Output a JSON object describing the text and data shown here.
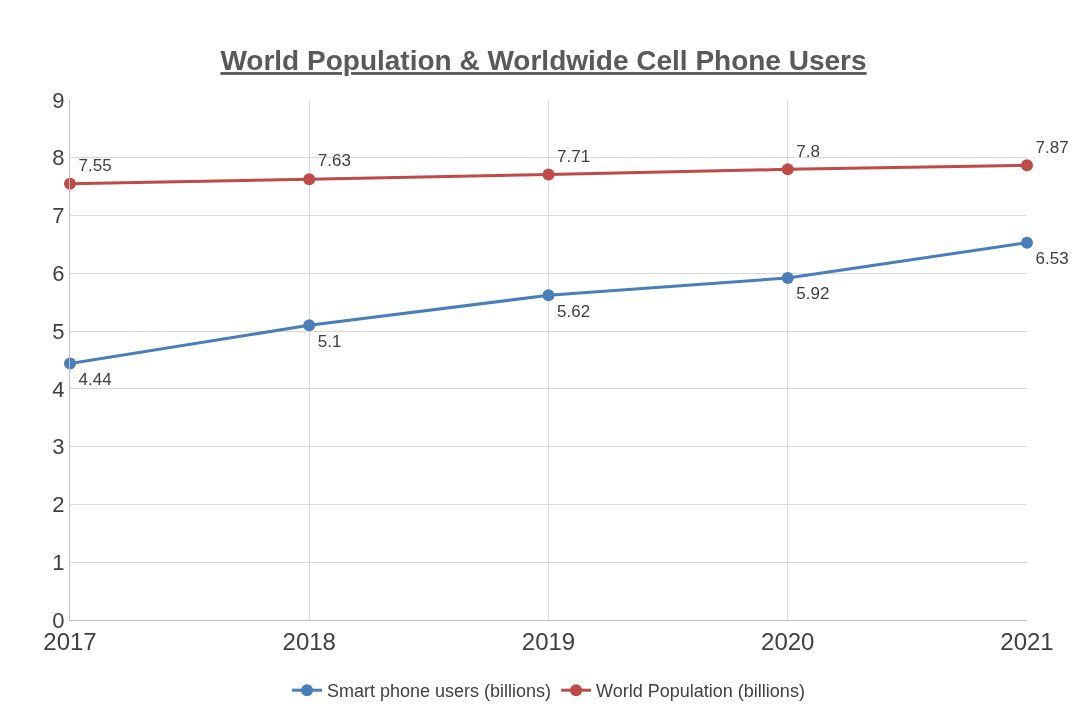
{
  "chart_data": {
    "type": "line",
    "title": "World Population & Worldwide Cell Phone Users",
    "x": [
      2017,
      2018,
      2019,
      2020,
      2021
    ],
    "series": [
      {
        "name": "Smart phone users (billions)",
        "color": "#4a7ebb",
        "values": [
          4.44,
          5.1,
          5.62,
          5.92,
          6.53
        ]
      },
      {
        "name": "World Population (billions)",
        "color": "#be4b48",
        "values": [
          7.55,
          7.63,
          7.71,
          7.8,
          7.87
        ]
      }
    ],
    "xlim": [
      2017,
      2021
    ],
    "xticks": [
      2017,
      2018,
      2019,
      2020,
      2021
    ],
    "ylim": [
      0,
      9
    ],
    "yticks": [
      0,
      1,
      2,
      3,
      4,
      5,
      6,
      7,
      8,
      9
    ],
    "grid": true,
    "legend": "bottom",
    "marker": "circle",
    "line_style": "solid",
    "data_labels": true
  }
}
